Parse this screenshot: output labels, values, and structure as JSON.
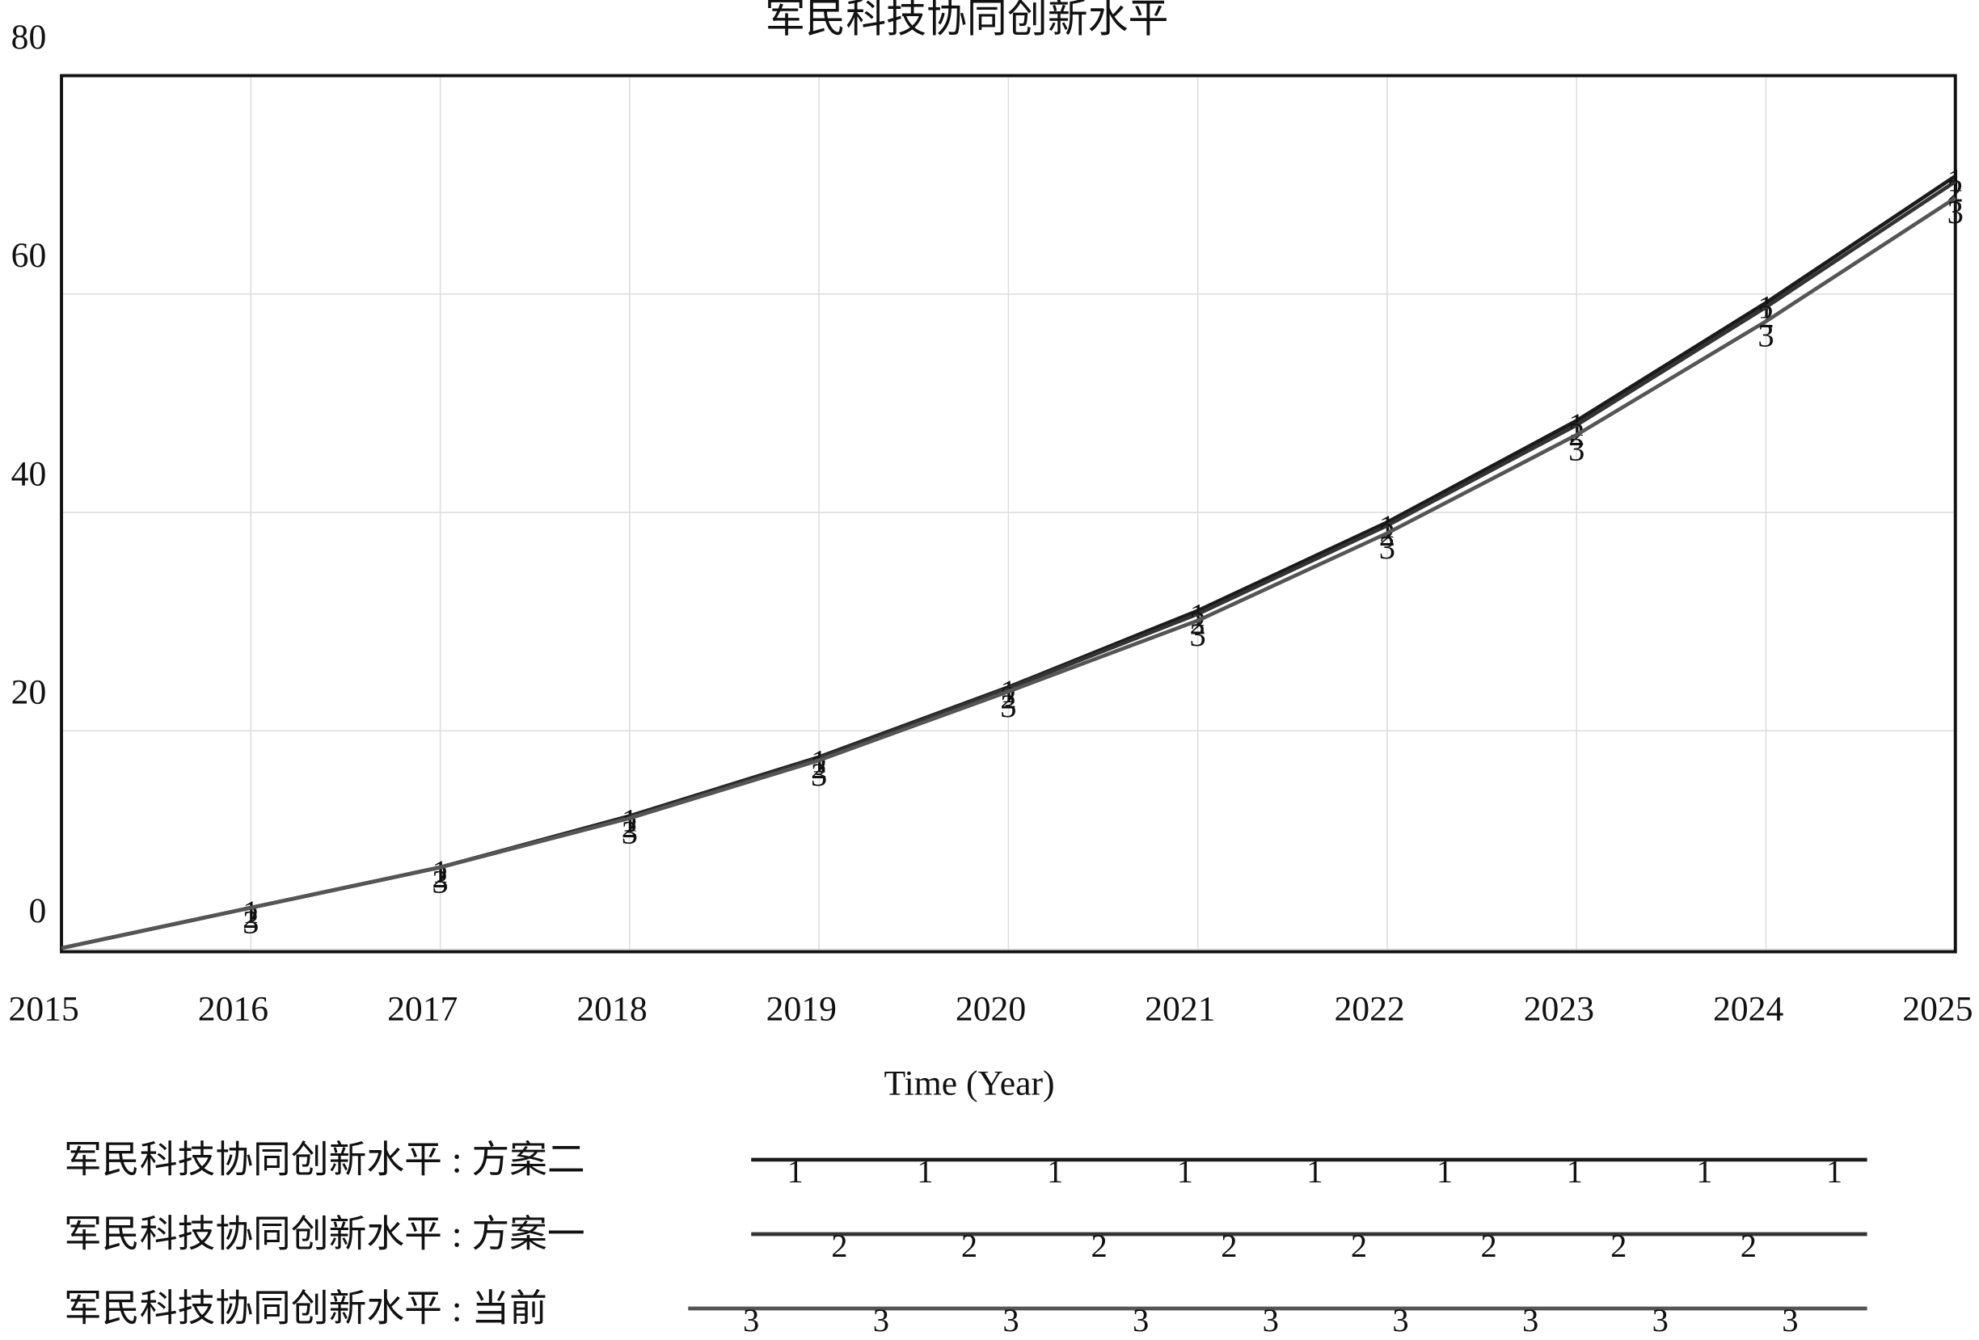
{
  "chart_data": {
    "type": "line",
    "title": "军民科技协同创新水平",
    "x_label": "Time (Year)",
    "x": [
      2015,
      2016,
      2017,
      2018,
      2019,
      2020,
      2021,
      2022,
      2023,
      2024,
      2025
    ],
    "xlim": [
      2015,
      2025
    ],
    "xticks": [
      2015,
      2016,
      2017,
      2018,
      2019,
      2020,
      2021,
      2022,
      2023,
      2024,
      2025
    ],
    "ylim": [
      0,
      80
    ],
    "yticks": [
      0,
      20,
      40,
      60,
      80
    ],
    "grid": true,
    "series": [
      {
        "name": "军民科技协同创新水平 : 方案二",
        "marker": "1",
        "color": "#1a1a1a",
        "values": [
          0.1,
          3.8,
          7.5,
          12.2,
          17.6,
          24.0,
          31.0,
          39.1,
          48.4,
          59.2,
          70.8
        ]
      },
      {
        "name": "军民科技协同创新水平 : 方案一",
        "marker": "2",
        "color": "#333333",
        "values": [
          0.1,
          3.8,
          7.5,
          12.1,
          17.5,
          23.9,
          30.7,
          38.8,
          48.0,
          58.8,
          70.3
        ]
      },
      {
        "name": "军民科技协同创新水平 : 当前",
        "marker": "3",
        "color": "#555555",
        "values": [
          0.1,
          3.8,
          7.5,
          12.0,
          17.3,
          23.6,
          30.1,
          38.1,
          47.1,
          57.5,
          68.8
        ]
      }
    ]
  }
}
